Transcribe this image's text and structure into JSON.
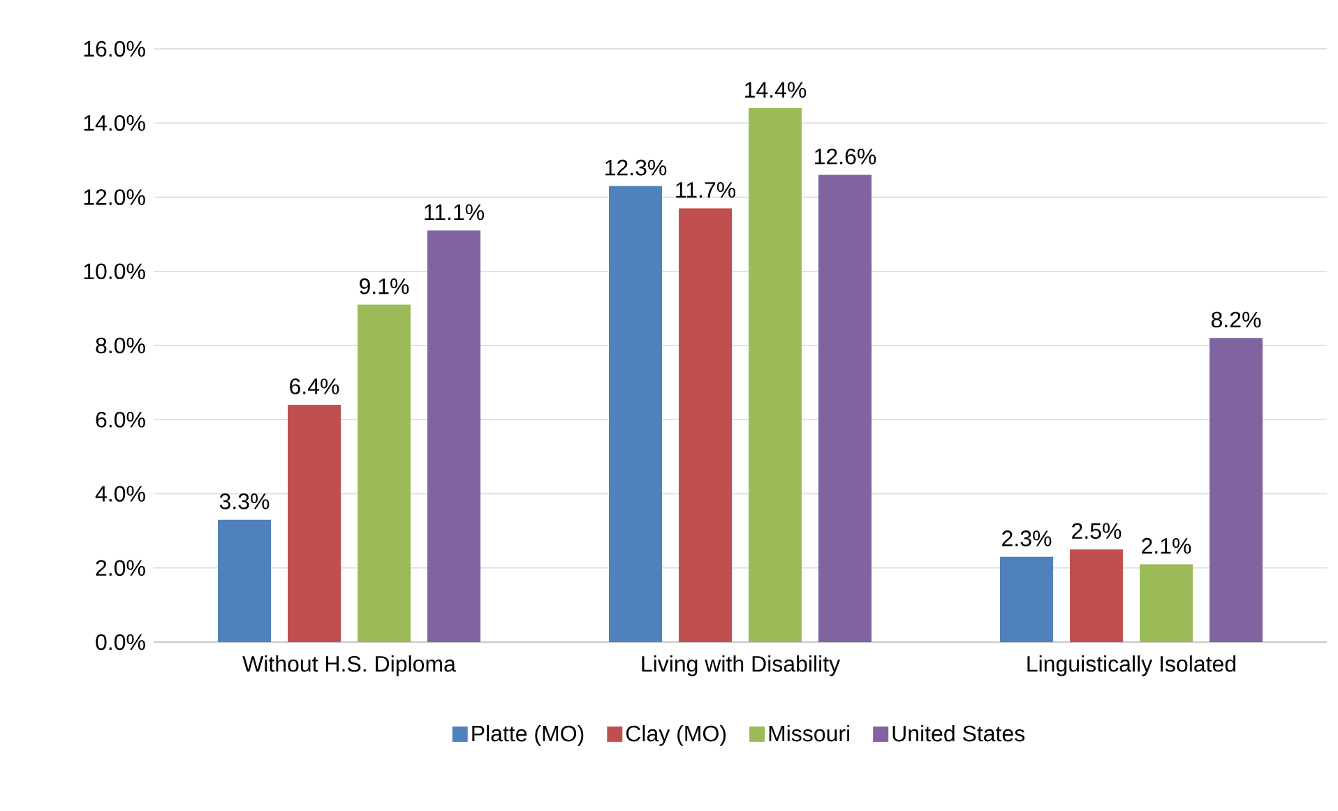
{
  "chart_data": {
    "type": "bar",
    "categories": [
      "Without H.S. Diploma",
      "Living with Disability",
      "Linguistically Isolated"
    ],
    "series": [
      {
        "name": "Platte (MO)",
        "color": "#4f81bd",
        "values": [
          3.3,
          12.3,
          2.3
        ],
        "value_labels": [
          "3.3%",
          "12.3%",
          "2.3%"
        ]
      },
      {
        "name": "Clay (MO)",
        "color": "#c0504d",
        "values": [
          6.4,
          11.7,
          2.5
        ],
        "value_labels": [
          "6.4%",
          "11.7%",
          "2.5%"
        ]
      },
      {
        "name": "Missouri",
        "color": "#9bbb59",
        "values": [
          9.1,
          14.4,
          2.1
        ],
        "value_labels": [
          "9.1%",
          "14.4%",
          "2.1%"
        ]
      },
      {
        "name": "United States",
        "color": "#8064a2",
        "values": [
          11.1,
          12.6,
          8.2
        ],
        "value_labels": [
          "11.1%",
          "12.6%",
          "8.2%"
        ]
      }
    ],
    "ylim": [
      0,
      16
    ],
    "yticks": [
      {
        "value": 0,
        "label": "0.0%"
      },
      {
        "value": 2,
        "label": "2.0%"
      },
      {
        "value": 4,
        "label": "4.0%"
      },
      {
        "value": 6,
        "label": "6.0%"
      },
      {
        "value": 8,
        "label": "8.0%"
      },
      {
        "value": 10,
        "label": "10.0%"
      },
      {
        "value": 12,
        "label": "12.0%"
      },
      {
        "value": 14,
        "label": "14.0%"
      },
      {
        "value": 16,
        "label": "16.0%"
      }
    ],
    "grid": "y",
    "legend": "bottom"
  }
}
